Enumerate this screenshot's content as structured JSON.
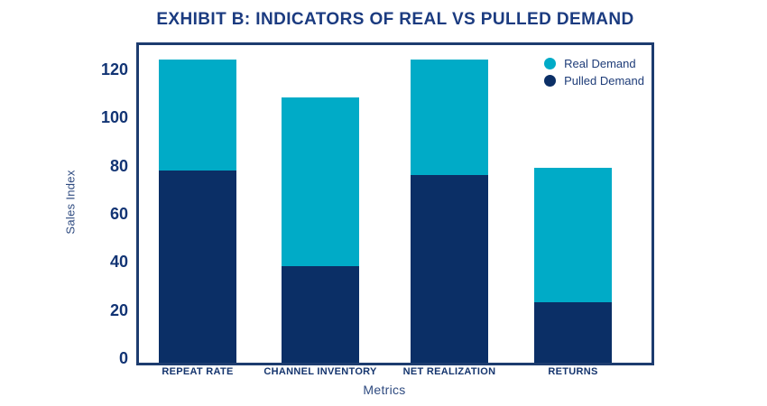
{
  "title": "EXHIBIT B: INDICATORS OF REAL VS PULLED DEMAND",
  "colors": {
    "real_demand": "#00ABC7",
    "pulled_demand": "#0B2F66",
    "frame": "#1D3C6F",
    "title_text": "#1B3B80",
    "tick_text": "#123474",
    "axis_title_text": "#2F4B80"
  },
  "chart_data": {
    "type": "bar",
    "stacked": true,
    "title": "EXHIBIT B: INDICATORS OF REAL VS PULLED DEMAND",
    "xlabel": "Metrics",
    "ylabel": "Sales Index",
    "categories": [
      "REPEAT RATE",
      "CHANNEL INVENTORY",
      "NET REALIZATION",
      "RETURNS"
    ],
    "series": [
      {
        "name": "Pulled Demand",
        "color": "#0B2F66",
        "values": [
          80,
          40,
          78,
          25
        ]
      },
      {
        "name": "Real Demand",
        "color": "#00ABC7",
        "values": [
          46,
          70,
          48,
          56
        ]
      }
    ],
    "totals": [
      126,
      110,
      126,
      81
    ],
    "yticks": [
      0,
      20,
      40,
      60,
      80,
      100,
      120
    ],
    "ylim": [
      0,
      132
    ],
    "grid": false,
    "legend_position": "top-right-inside",
    "legend": [
      {
        "label": "Real Demand",
        "color": "#00ABC7"
      },
      {
        "label": "Pulled Demand",
        "color": "#0B2F66"
      }
    ]
  }
}
